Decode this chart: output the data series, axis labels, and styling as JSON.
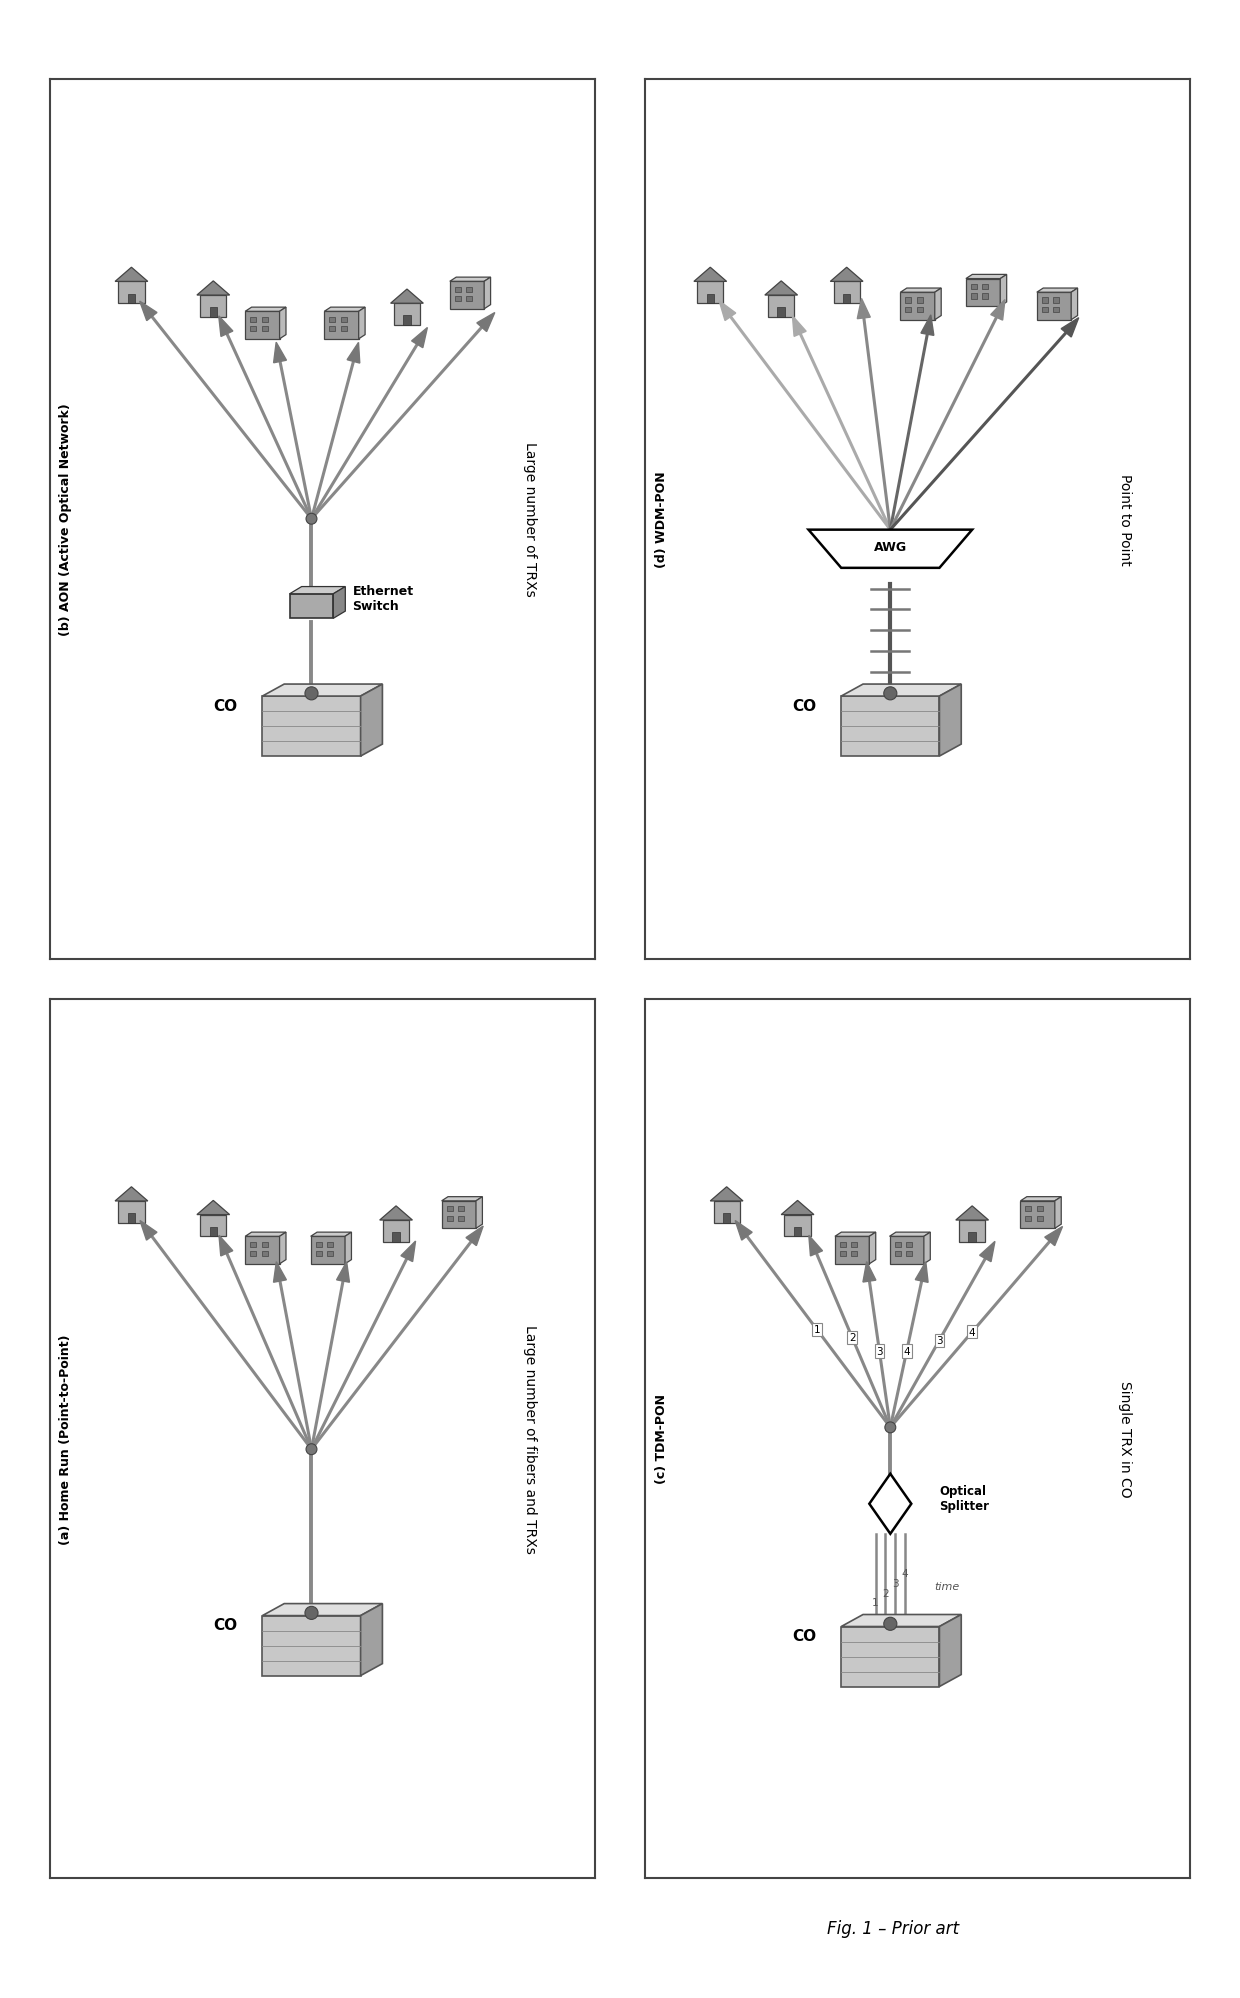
{
  "fig_width": 12.4,
  "fig_height": 19.99,
  "dpi": 100,
  "background": "#ffffff",
  "panel_rects": {
    "b": [
      0.04,
      0.52,
      0.44,
      0.44
    ],
    "d": [
      0.52,
      0.52,
      0.44,
      0.44
    ],
    "a": [
      0.04,
      0.06,
      0.44,
      0.44
    ],
    "c": [
      0.52,
      0.06,
      0.44,
      0.44
    ]
  },
  "line_color": "#888888",
  "node_color": "#777777",
  "house_color": "#aaaaaa",
  "apt_color": "#999999",
  "co_color": "#bbbbbb",
  "panel_a": {
    "title_rotated": "(a) Home Run (Point-to-Point)",
    "sublabel": "Large number of fibers and TRXs",
    "co_label": "CO"
  },
  "panel_b": {
    "title_rotated": "(b) AON (Active Optical Network)",
    "sublabel": "Large number of TRXs",
    "co_label": "CO",
    "switch_label": "Ethernet\nSwitch"
  },
  "panel_c": {
    "title_rotated": "(c) TDM-PON",
    "sublabel": "Single TRX in CO",
    "co_label": "CO",
    "splitter_label": "Optical\nSplitter",
    "time_label": "time"
  },
  "panel_d": {
    "title_rotated": "(d) WDM-PON",
    "sublabel": "Point to Point",
    "co_label": "CO",
    "awg_label": "AWG"
  },
  "figure_caption": "Fig. 1 – Prior art"
}
